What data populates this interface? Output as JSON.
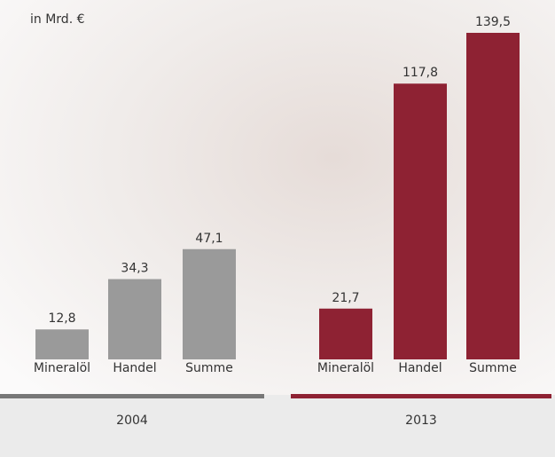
{
  "chart_data": {
    "type": "bar",
    "subtitle": "in Mrd. €",
    "groups": [
      {
        "name": "2004",
        "color": "#9a9a9a",
        "categories": [
          "Mineralöl",
          "Handel",
          "Summe"
        ],
        "values": [
          12.8,
          34.3,
          47.1
        ],
        "value_labels": [
          "12,8",
          "34,3",
          "47,1"
        ]
      },
      {
        "name": "2013",
        "color": "#8e2233",
        "categories": [
          "Mineralöl",
          "Handel",
          "Summe"
        ],
        "values": [
          21.7,
          117.8,
          139.5
        ],
        "value_labels": [
          "21,7",
          "117,8",
          "139,5"
        ]
      }
    ]
  }
}
